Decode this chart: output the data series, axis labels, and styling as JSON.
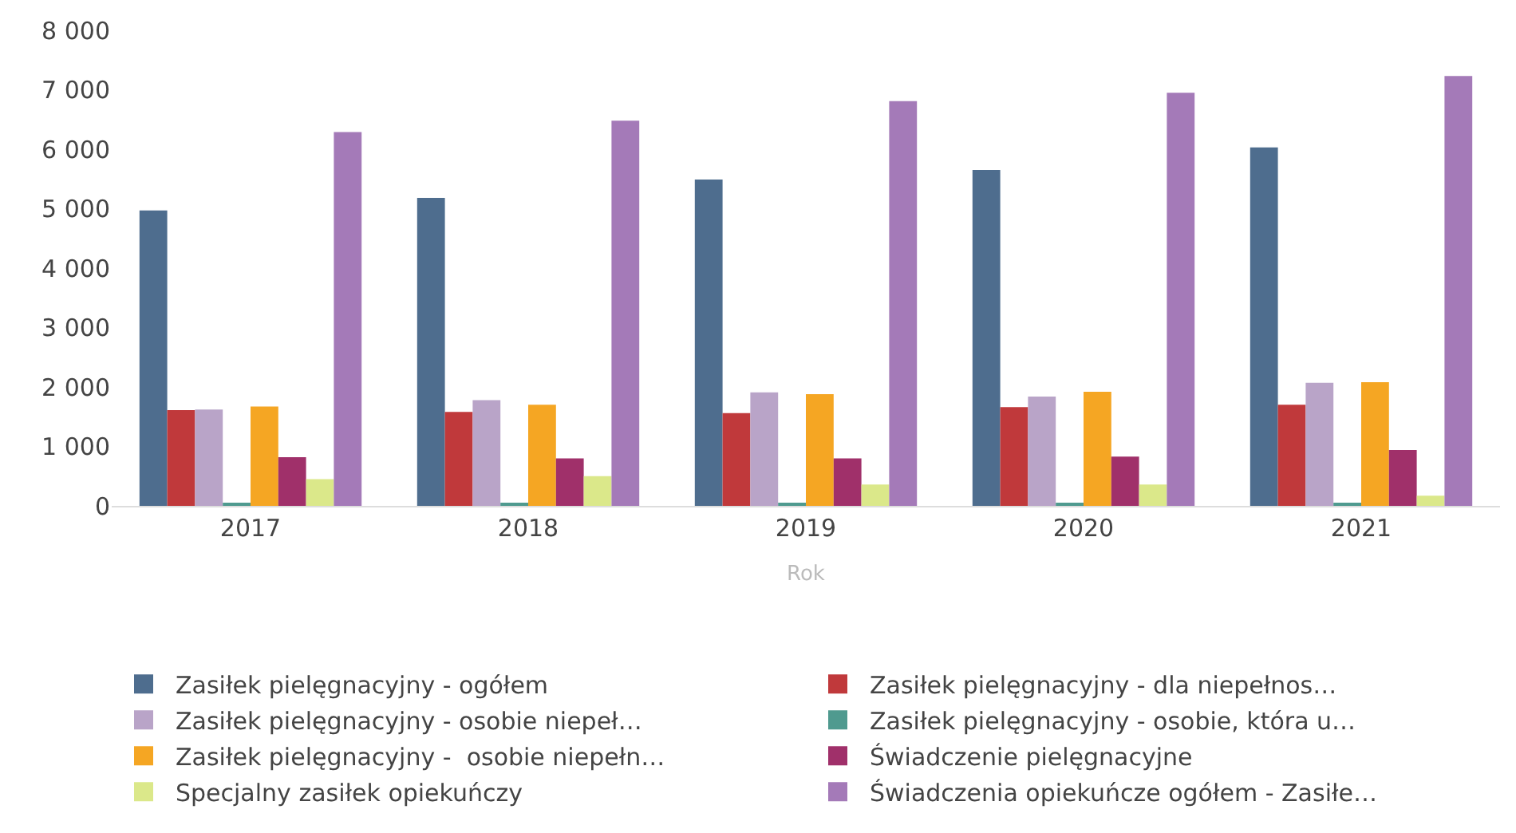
{
  "chart_data": {
    "type": "bar",
    "xlabel": "Rok",
    "categories": [
      "2017",
      "2018",
      "2019",
      "2020",
      "2021"
    ],
    "series": [
      {
        "name": "Zasiłek pielęgnacyjny - ogółem",
        "color": "#4e6d8e",
        "values": [
          4970,
          5180,
          5490,
          5650,
          6030
        ]
      },
      {
        "name": "Zasiłek pielęgnacyjny - dla niepełnos…",
        "color": "#c0393b",
        "values": [
          1610,
          1580,
          1560,
          1660,
          1700
        ]
      },
      {
        "name": "Zasiłek pielęgnacyjny - osobie niepeł…",
        "color": "#b9a4c8",
        "values": [
          1620,
          1780,
          1910,
          1840,
          2070
        ]
      },
      {
        "name": "Zasiłek pielęgnacyjny - osobie, która u…",
        "color": "#4f9a8f",
        "values": [
          30,
          30,
          30,
          30,
          30
        ]
      },
      {
        "name": "Zasiłek pielęgnacyjny -  osobie niepełn…",
        "color": "#f5a623",
        "values": [
          1670,
          1700,
          1880,
          1920,
          2080
        ]
      },
      {
        "name": "Świadczenie pielęgnacyjne",
        "color": "#a0306a",
        "values": [
          820,
          800,
          800,
          830,
          940
        ]
      },
      {
        "name": "Specjalny zasiłek opiekuńczy",
        "color": "#dbe88a",
        "values": [
          450,
          500,
          360,
          360,
          170
        ]
      },
      {
        "name": "Świadczenia opiekuńcze ogółem - Zasiłe…",
        "color": "#a47ab8",
        "values": [
          6290,
          6480,
          6810,
          6950,
          7230
        ]
      }
    ],
    "ylim": [
      0,
      8000
    ],
    "yticks": [
      {
        "value": 0,
        "label": "0"
      },
      {
        "value": 1000,
        "label": "1 000"
      },
      {
        "value": 2000,
        "label": "2 000"
      },
      {
        "value": 3000,
        "label": "3 000"
      },
      {
        "value": 4000,
        "label": "4 000"
      },
      {
        "value": 5000,
        "label": "5 000"
      },
      {
        "value": 6000,
        "label": "6 000"
      },
      {
        "value": 7000,
        "label": "7 000"
      },
      {
        "value": 8000,
        "label": "8 000"
      }
    ],
    "legend": "bottom"
  }
}
